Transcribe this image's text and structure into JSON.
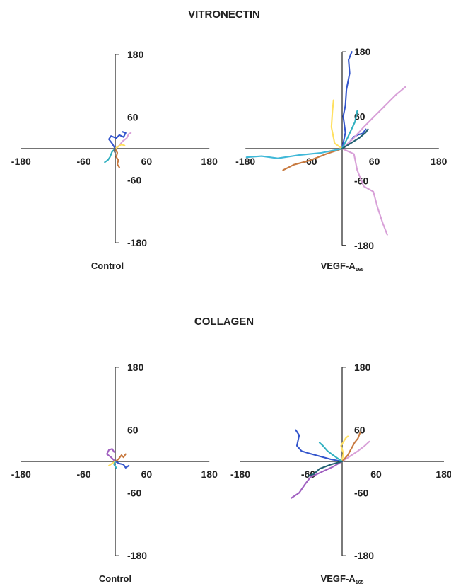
{
  "sections": [
    {
      "title": "VITRONECTIN"
    },
    {
      "title": "COLLAGEN"
    }
  ],
  "chart_data": [
    {
      "type": "line",
      "section": "VITRONECTIN",
      "condition": {
        "main": "Control",
        "sub": ""
      },
      "xlim": [
        -180,
        180
      ],
      "ylim": [
        -180,
        180
      ],
      "tick_labels": {
        "x": [
          "-180",
          "-60",
          "60",
          "180"
        ],
        "y": [
          "180",
          "60",
          "-60",
          "-180"
        ]
      },
      "series": [
        {
          "color": "#3355cc",
          "points": [
            [
              0,
              0
            ],
            [
              -6,
              10
            ],
            [
              -12,
              18
            ],
            [
              -8,
              24
            ],
            [
              2,
              20
            ],
            [
              8,
              26
            ],
            [
              16,
              22
            ],
            [
              20,
              30
            ],
            [
              14,
              32
            ]
          ]
        },
        {
          "color": "#d8a0d8",
          "points": [
            [
              0,
              0
            ],
            [
              8,
              6
            ],
            [
              14,
              14
            ],
            [
              22,
              20
            ],
            [
              26,
              28
            ],
            [
              30,
              30
            ]
          ]
        },
        {
          "color": "#c87a40",
          "points": [
            [
              0,
              0
            ],
            [
              4,
              -8
            ],
            [
              2,
              -16
            ],
            [
              6,
              -22
            ],
            [
              4,
              -30
            ],
            [
              8,
              -36
            ]
          ]
        },
        {
          "color": "#30b0c0",
          "points": [
            [
              0,
              0
            ],
            [
              -6,
              -6
            ],
            [
              -10,
              -16
            ],
            [
              -14,
              -22
            ],
            [
              -20,
              -26
            ]
          ]
        },
        {
          "color": "#ffe060",
          "points": [
            [
              0,
              0
            ],
            [
              6,
              4
            ],
            [
              12,
              8
            ],
            [
              18,
              6
            ]
          ]
        },
        {
          "color": "#6a6a6a",
          "points": [
            [
              0,
              0
            ],
            [
              -2,
              -4
            ],
            [
              0,
              -8
            ]
          ]
        }
      ]
    },
    {
      "type": "line",
      "section": "VITRONECTIN",
      "condition": {
        "main": "VEGF-A",
        "sub": "165"
      },
      "xlim": [
        -180,
        180
      ],
      "ylim": [
        -180,
        180
      ],
      "tick_labels": {
        "x": [
          "-180",
          "-60",
          "60",
          "180"
        ],
        "y": [
          "180",
          "60",
          "-60",
          "-180"
        ]
      },
      "series": [
        {
          "color": "#3355cc",
          "points": [
            [
              0,
              0
            ],
            [
              6,
              30
            ],
            [
              2,
              60
            ],
            [
              6,
              80
            ],
            [
              8,
              110
            ],
            [
              14,
              140
            ],
            [
              12,
              165
            ],
            [
              18,
              180
            ]
          ]
        },
        {
          "color": "#3355cc",
          "points": [
            [
              0,
              0
            ],
            [
              12,
              10
            ],
            [
              22,
              22
            ],
            [
              30,
              26
            ],
            [
              38,
              28
            ],
            [
              44,
              36
            ]
          ]
        },
        {
          "color": "#d8a0d8",
          "points": [
            [
              0,
              0
            ],
            [
              20,
              18
            ],
            [
              40,
              40
            ],
            [
              60,
              60
            ],
            [
              80,
              80
            ],
            [
              100,
              100
            ],
            [
              118,
              115
            ]
          ]
        },
        {
          "color": "#d8a0d8",
          "points": [
            [
              0,
              0
            ],
            [
              22,
              -10
            ],
            [
              28,
              -40
            ],
            [
              40,
              -70
            ],
            [
              58,
              -80
            ],
            [
              66,
              -110
            ],
            [
              76,
              -140
            ],
            [
              84,
              -160
            ]
          ]
        },
        {
          "color": "#ffe060",
          "points": [
            [
              0,
              0
            ],
            [
              -14,
              10
            ],
            [
              -20,
              40
            ],
            [
              -18,
              70
            ],
            [
              -16,
              90
            ]
          ]
        },
        {
          "color": "#c87a40",
          "points": [
            [
              0,
              0
            ],
            [
              -30,
              -10
            ],
            [
              -60,
              -22
            ],
            [
              -90,
              -30
            ],
            [
              -110,
              -40
            ]
          ]
        },
        {
          "color": "#40b8d8",
          "points": [
            [
              0,
              0
            ],
            [
              -40,
              -8
            ],
            [
              -80,
              -12
            ],
            [
              -120,
              -18
            ],
            [
              -150,
              -14
            ],
            [
              -178,
              -16
            ]
          ]
        },
        {
          "color": "#30b0c0",
          "points": [
            [
              0,
              0
            ],
            [
              10,
              20
            ],
            [
              24,
              50
            ],
            [
              28,
              70
            ]
          ]
        },
        {
          "color": "#206070",
          "points": [
            [
              0,
              0
            ],
            [
              16,
              10
            ],
            [
              32,
              20
            ],
            [
              44,
              30
            ],
            [
              48,
              36
            ]
          ]
        }
      ]
    },
    {
      "type": "line",
      "section": "COLLAGEN",
      "condition": {
        "main": "Control",
        "sub": ""
      },
      "xlim": [
        -180,
        180
      ],
      "ylim": [
        -180,
        180
      ],
      "tick_labels": {
        "x": [
          "-180",
          "-60",
          "60",
          "180"
        ],
        "y": [
          "180",
          "60",
          "-60",
          "-180"
        ]
      },
      "series": [
        {
          "color": "#a060c0",
          "points": [
            [
              0,
              0
            ],
            [
              -8,
              8
            ],
            [
              -16,
              14
            ],
            [
              -12,
              22
            ],
            [
              -6,
              24
            ],
            [
              -2,
              18
            ]
          ]
        },
        {
          "color": "#c87a40",
          "points": [
            [
              0,
              0
            ],
            [
              6,
              4
            ],
            [
              12,
              12
            ],
            [
              16,
              8
            ],
            [
              20,
              14
            ]
          ]
        },
        {
          "color": "#3355cc",
          "points": [
            [
              0,
              0
            ],
            [
              8,
              -4
            ],
            [
              16,
              -6
            ],
            [
              20,
              -12
            ],
            [
              26,
              -8
            ]
          ]
        },
        {
          "color": "#ffe060",
          "points": [
            [
              0,
              0
            ],
            [
              -6,
              -4
            ],
            [
              -12,
              -8
            ]
          ]
        },
        {
          "color": "#30b0c0",
          "points": [
            [
              0,
              0
            ],
            [
              -2,
              -6
            ],
            [
              2,
              -12
            ]
          ]
        }
      ]
    },
    {
      "type": "line",
      "section": "COLLAGEN",
      "condition": {
        "main": "VEGF-A",
        "sub": "165"
      },
      "xlim": [
        -180,
        180
      ],
      "ylim": [
        -180,
        180
      ],
      "tick_labels": {
        "x": [
          "-180",
          "-60",
          "60",
          "180"
        ],
        "y": [
          "180",
          "60",
          "-60",
          "-180"
        ]
      },
      "series": [
        {
          "color": "#3355cc",
          "points": [
            [
              0,
              0
            ],
            [
              -20,
              4
            ],
            [
              -40,
              10
            ],
            [
              -60,
              16
            ],
            [
              -72,
              20
            ],
            [
              -80,
              30
            ],
            [
              -76,
              50
            ],
            [
              -82,
              60
            ]
          ]
        },
        {
          "color": "#a060c0",
          "points": [
            [
              0,
              0
            ],
            [
              -16,
              -10
            ],
            [
              -36,
              -20
            ],
            [
              -56,
              -30
            ],
            [
              -66,
              -44
            ],
            [
              -76,
              -60
            ],
            [
              -90,
              -70
            ]
          ]
        },
        {
          "color": "#d8a0d8",
          "points": [
            [
              0,
              0
            ],
            [
              14,
              10
            ],
            [
              28,
              20
            ],
            [
              40,
              30
            ],
            [
              48,
              38
            ]
          ]
        },
        {
          "color": "#ffe060",
          "points": [
            [
              0,
              0
            ],
            [
              2,
              16
            ],
            [
              -2,
              30
            ],
            [
              6,
              44
            ],
            [
              10,
              48
            ]
          ]
        },
        {
          "color": "#c87a40",
          "points": [
            [
              0,
              0
            ],
            [
              10,
              12
            ],
            [
              16,
              24
            ],
            [
              22,
              36
            ],
            [
              28,
              44
            ],
            [
              32,
              56
            ]
          ]
        },
        {
          "color": "#30b0c0",
          "points": [
            [
              0,
              0
            ],
            [
              -16,
              12
            ],
            [
              -26,
              20
            ],
            [
              -34,
              30
            ],
            [
              -40,
              36
            ]
          ]
        },
        {
          "color": "#206070",
          "points": [
            [
              0,
              0
            ],
            [
              -20,
              -6
            ],
            [
              -40,
              -14
            ],
            [
              -50,
              -24
            ],
            [
              -60,
              -28
            ]
          ]
        }
      ]
    }
  ]
}
